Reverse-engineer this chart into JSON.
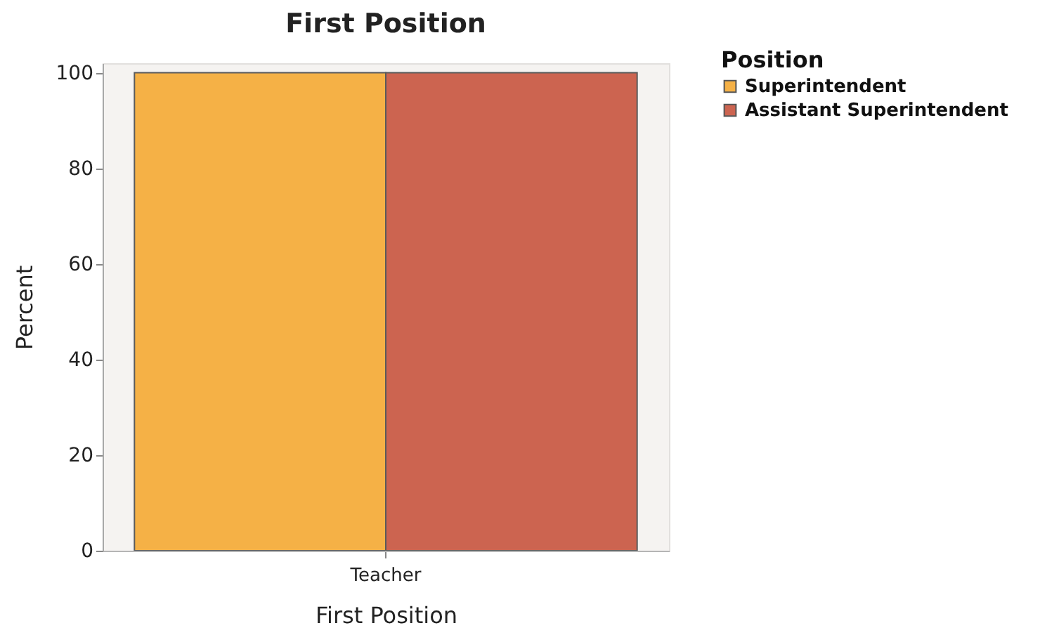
{
  "chart_data": {
    "type": "bar",
    "title": "First Position",
    "xlabel": "First Position",
    "ylabel": "Percent",
    "legend_title": "Position",
    "categories": [
      "Teacher"
    ],
    "series": [
      {
        "name": "Superintendent",
        "color": "#f5b146",
        "values": [
          100
        ]
      },
      {
        "name": "Assistant Superintendent",
        "color": "#cc6450",
        "values": [
          100
        ]
      }
    ],
    "ylim": [
      0,
      102
    ],
    "yticks": [
      0,
      20,
      40,
      60,
      80,
      100
    ],
    "legend": "top right"
  }
}
